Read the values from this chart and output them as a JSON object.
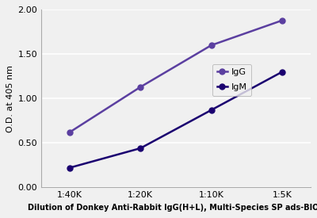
{
  "x_labels": [
    "1:40K",
    "1:20K",
    "1:10K",
    "1:5K"
  ],
  "x_positions": [
    0,
    1,
    2,
    3
  ],
  "IgG_values": [
    0.62,
    1.13,
    1.6,
    1.88
  ],
  "IgM_values": [
    0.22,
    0.44,
    0.87,
    1.3
  ],
  "IgG_color": "#5B3FA0",
  "IgM_color": "#1A0070",
  "ylabel": "O.D. at 405 nm",
  "xlabel": "Dilution of Donkey Anti-Rabbit IgG(H+L), Multi-Species SP ads-BIOT",
  "ylim": [
    0.0,
    2.0
  ],
  "yticks": [
    0.0,
    0.5,
    1.0,
    1.5,
    2.0
  ],
  "legend_IgG": "IgG",
  "legend_IgM": "IgM",
  "marker": "o",
  "markersize": 5,
  "linewidth": 1.8,
  "bg_color": "#f0f0f0",
  "grid_color": "#ffffff",
  "grid_linewidth": 1.2
}
